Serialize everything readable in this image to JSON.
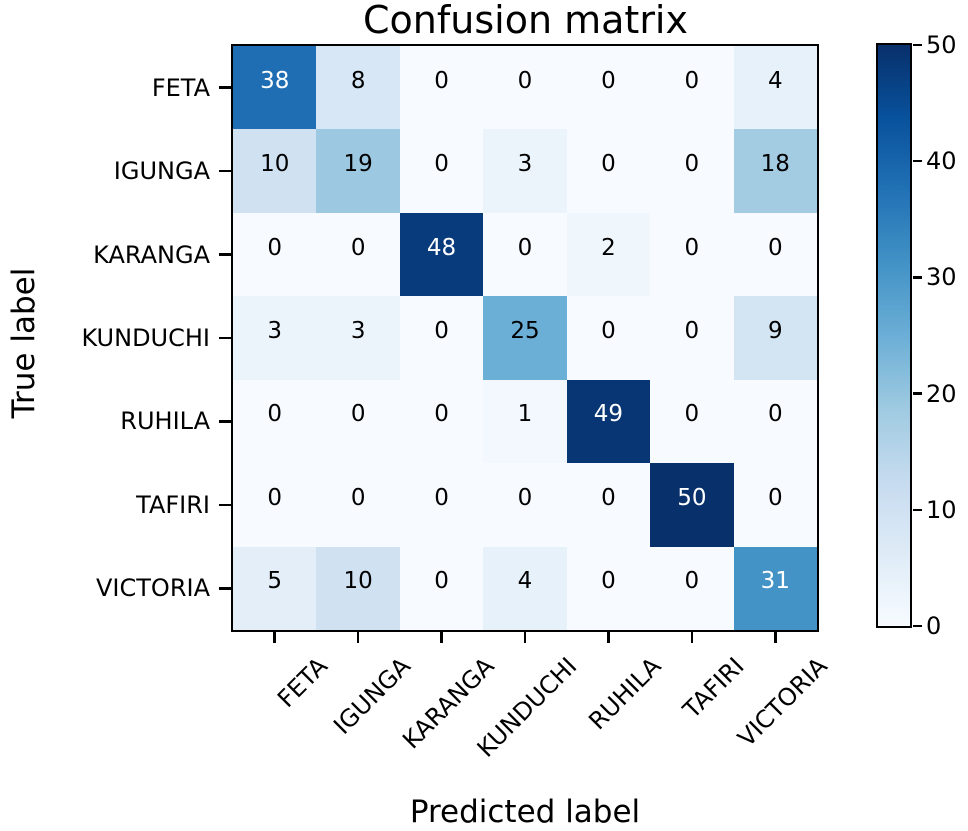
{
  "chart_data": {
    "type": "heatmap",
    "title": "Confusion matrix",
    "xlabel": "Predicted label",
    "ylabel": "True label",
    "x_categories": [
      "FETA",
      "IGUNGA",
      "KARANGA",
      "KUNDUCHI",
      "RUHILA",
      "TAFIRI",
      "VICTORIA"
    ],
    "y_categories": [
      "FETA",
      "IGUNGA",
      "KARANGA",
      "KUNDUCHI",
      "RUHILA",
      "TAFIRI",
      "VICTORIA"
    ],
    "matrix": [
      [
        38,
        8,
        0,
        0,
        0,
        0,
        4
      ],
      [
        10,
        19,
        0,
        3,
        0,
        0,
        18
      ],
      [
        0,
        0,
        48,
        0,
        2,
        0,
        0
      ],
      [
        3,
        3,
        0,
        25,
        0,
        0,
        9
      ],
      [
        0,
        0,
        0,
        1,
        49,
        0,
        0
      ],
      [
        0,
        0,
        0,
        0,
        0,
        50,
        0
      ],
      [
        5,
        10,
        0,
        4,
        0,
        0,
        31
      ]
    ],
    "vmin": 0,
    "vmax": 50,
    "colorbar_ticks": [
      0,
      10,
      20,
      30,
      40,
      50
    ],
    "colorbar_position": "right",
    "colormap": "Blues",
    "colormap_stops": [
      "#f7fbff",
      "#deebf7",
      "#c6dbef",
      "#9ecae1",
      "#6baed6",
      "#4292c6",
      "#2171b5",
      "#08519c",
      "#08306b"
    ],
    "cell_text_dark": "#000000",
    "cell_text_light": "#ffffff",
    "spine_color": "#000000",
    "grid": false,
    "x_tick_rotation_deg": 45
  }
}
